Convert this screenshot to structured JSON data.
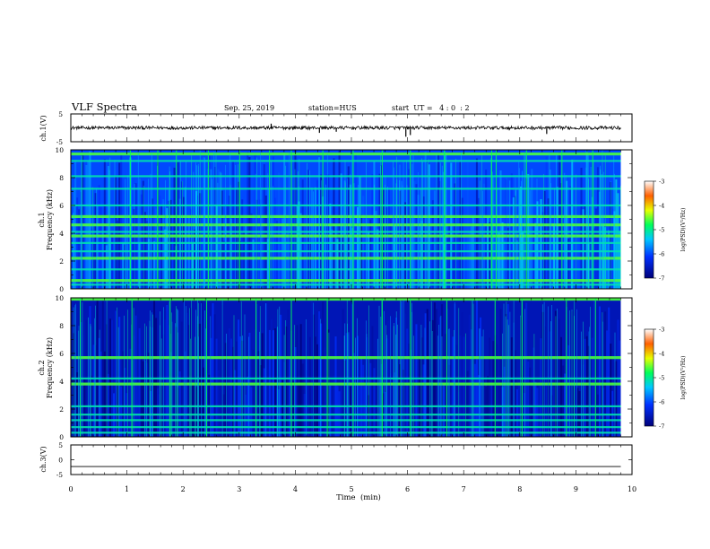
{
  "header": {
    "title": "VLF Spectra",
    "date": "Sep. 25, 2019",
    "station": "station=HUS",
    "start": "start  UT =   4 : 0  : 2"
  },
  "chart_data": [
    {
      "type": "line",
      "title": "VLF Spectra",
      "ylabel": "ch.1(V)",
      "xlim": [
        0,
        10
      ],
      "ylim": [
        -5,
        5
      ],
      "yticks": [
        5,
        -5
      ],
      "baseline": 0,
      "spikes": [
        {
          "x": 3.57,
          "y": 1.5
        },
        {
          "x": 4.43,
          "y": -1.8
        },
        {
          "x": 4.73,
          "y": -1.4
        },
        {
          "x": 5.97,
          "y": -3.2
        },
        {
          "x": 6.05,
          "y": -2.6
        },
        {
          "x": 8.48,
          "y": -2.2
        }
      ]
    },
    {
      "type": "heatmap",
      "ylabel": "ch.1 Frequency (kHz)",
      "xlim": [
        0,
        9.8
      ],
      "ylim": [
        0,
        10
      ],
      "yticks": [
        0,
        2,
        4,
        6,
        8,
        10
      ],
      "colorbar": {
        "label": "log(PSD)(V²/Hz)",
        "range": [
          -7,
          -3
        ],
        "ticks": [
          -3,
          -4,
          -5,
          -6,
          -7
        ]
      },
      "background_level": -6.0,
      "bands_khz": [
        0.3,
        0.6,
        1.4,
        2.2,
        2.7,
        3.3,
        3.8,
        4.1,
        4.6,
        5.2,
        6.0,
        7.2,
        8.1,
        9.2,
        9.7
      ],
      "bright_bands_khz": [
        0.6,
        2.2,
        3.8,
        4.6,
        5.2,
        9.7
      ],
      "vertical_bursts_min": [
        1.06,
        1.55,
        1.88,
        2.45,
        3.01,
        3.54,
        3.93,
        4.49,
        5.03,
        5.55,
        6.05,
        6.66,
        7.5,
        7.58,
        8.12,
        8.75,
        9.3
      ]
    },
    {
      "type": "heatmap",
      "ylabel": "ch.2 Frequency (kHz)",
      "xlim": [
        0,
        9.8
      ],
      "ylim": [
        0,
        10
      ],
      "yticks": [
        0,
        2,
        4,
        6,
        8,
        10
      ],
      "colorbar": {
        "label": "log(PSD)(V²/Hz)",
        "range": [
          -7,
          -3
        ],
        "ticks": [
          -3,
          -4,
          -5,
          -6,
          -7
        ]
      },
      "background_level": -6.6,
      "bands_khz": [
        0.3,
        0.7,
        1.2,
        1.6,
        2.2,
        3.8,
        4.2,
        5.7,
        9.9
      ],
      "bright_bands_khz": [
        3.8,
        5.7,
        9.9
      ],
      "vertical_bursts_min": [
        0.17,
        1.09,
        1.77,
        2.42,
        3.3,
        3.93,
        4.57,
        5.03,
        5.55,
        6.05,
        6.7,
        7.56,
        8.04,
        8.83,
        9.35
      ]
    },
    {
      "type": "line",
      "ylabel": "ch.3(V)",
      "xlabel": "Time  (min)",
      "xlim": [
        0,
        10
      ],
      "ylim": [
        -5,
        5
      ],
      "yticks": [
        5,
        0,
        -5
      ],
      "xticks": [
        0,
        1,
        2,
        3,
        4,
        5,
        6,
        7,
        8,
        9,
        10
      ],
      "baseline": -2.3
    }
  ]
}
